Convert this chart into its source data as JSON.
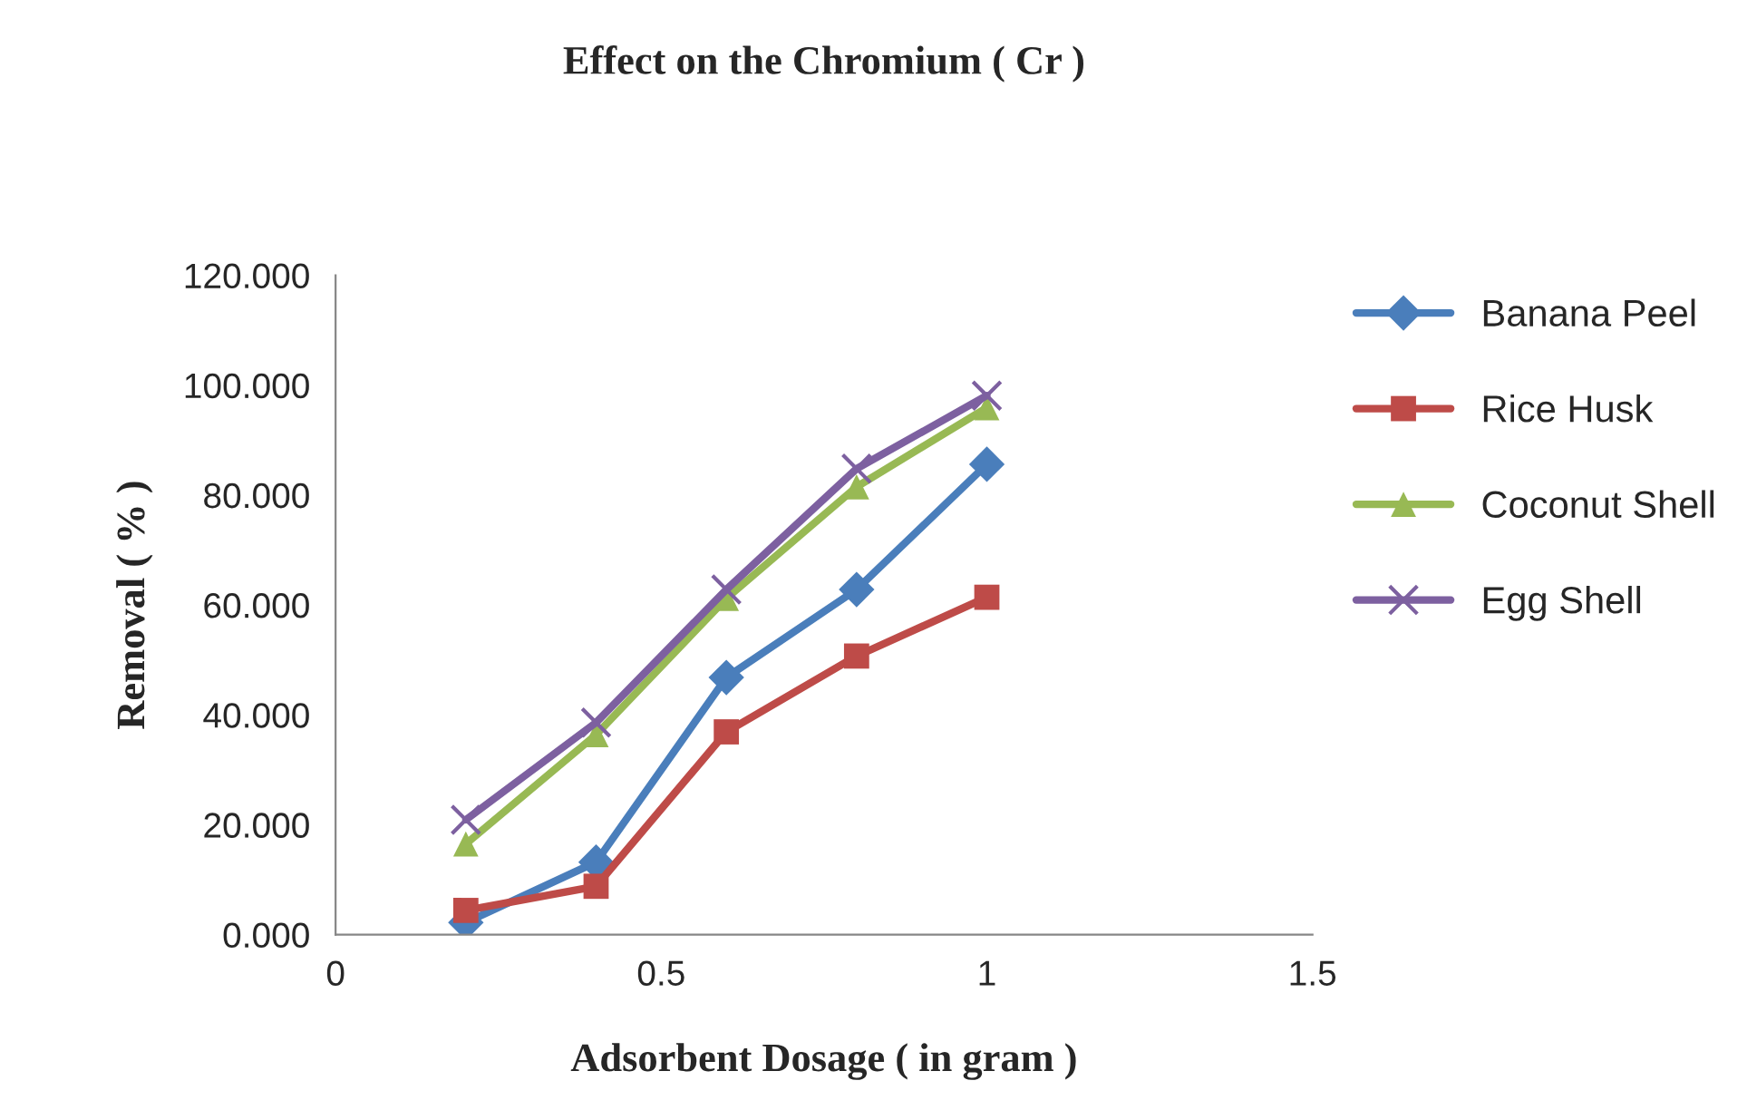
{
  "chart_data": {
    "type": "line",
    "title": "Effect on the Chromium ( Cr )",
    "xlabel": "Adsorbent Dosage ( in gram )",
    "ylabel": "Removal ( % )",
    "x": [
      0.2,
      0.4,
      0.6,
      0.8,
      1.0
    ],
    "series": [
      {
        "name": "Banana Peel",
        "color": "#4a7ebb",
        "marker": "diamond",
        "values": [
          2.2,
          13.2,
          46.8,
          62.8,
          85.6
        ]
      },
      {
        "name": "Rice Husk",
        "color": "#be4b48",
        "marker": "square",
        "values": [
          4.4,
          8.8,
          36.9,
          50.7,
          61.4
        ]
      },
      {
        "name": "Coconut Shell",
        "color": "#98b954",
        "marker": "triangle",
        "values": [
          16.5,
          36.4,
          61.2,
          81.5,
          95.9
        ]
      },
      {
        "name": "Egg Shell",
        "color": "#7d60a0",
        "marker": "cross",
        "values": [
          20.9,
          38.6,
          62.8,
          84.8,
          98.1
        ]
      }
    ],
    "xlim": [
      0,
      1.5
    ],
    "xticks": [
      0,
      0.5,
      1,
      1.5
    ],
    "ylim": [
      0,
      120
    ],
    "yticks": [
      {
        "value": 0,
        "label": "0.000"
      },
      {
        "value": 20,
        "label": "20.000"
      },
      {
        "value": 40,
        "label": "40.000"
      },
      {
        "value": 60,
        "label": "60.000"
      },
      {
        "value": 80,
        "label": "80.000"
      },
      {
        "value": 100,
        "label": "100.000"
      },
      {
        "value": 120,
        "label": "120.000"
      }
    ],
    "grid": false,
    "legend": "right",
    "line_style": "solid"
  }
}
